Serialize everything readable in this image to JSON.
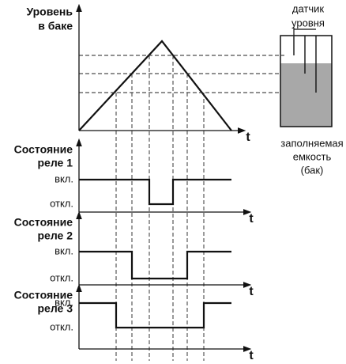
{
  "level_plot": {
    "title_lines": [
      "Уровень",
      "в баке"
    ],
    "axis_label": "t"
  },
  "tank": {
    "sensor_label_lines": [
      "датчик",
      "уровня"
    ],
    "tank_label_lines": [
      "заполняемая",
      "емкость",
      "(бак)"
    ]
  },
  "relays": [
    {
      "title_lines": [
        "Состояние",
        "реле 1"
      ],
      "on_label": "вкл.",
      "off_label": "откл.",
      "axis_label": "t"
    },
    {
      "title_lines": [
        "Состояние",
        "реле 2"
      ],
      "on_label": "вкл.",
      "off_label": "откл.",
      "axis_label": "t"
    },
    {
      "title_lines": [
        "Состояние",
        "реле 3"
      ],
      "on_label": "вкл.",
      "off_label": "откл.",
      "axis_label": "t"
    }
  ]
}
